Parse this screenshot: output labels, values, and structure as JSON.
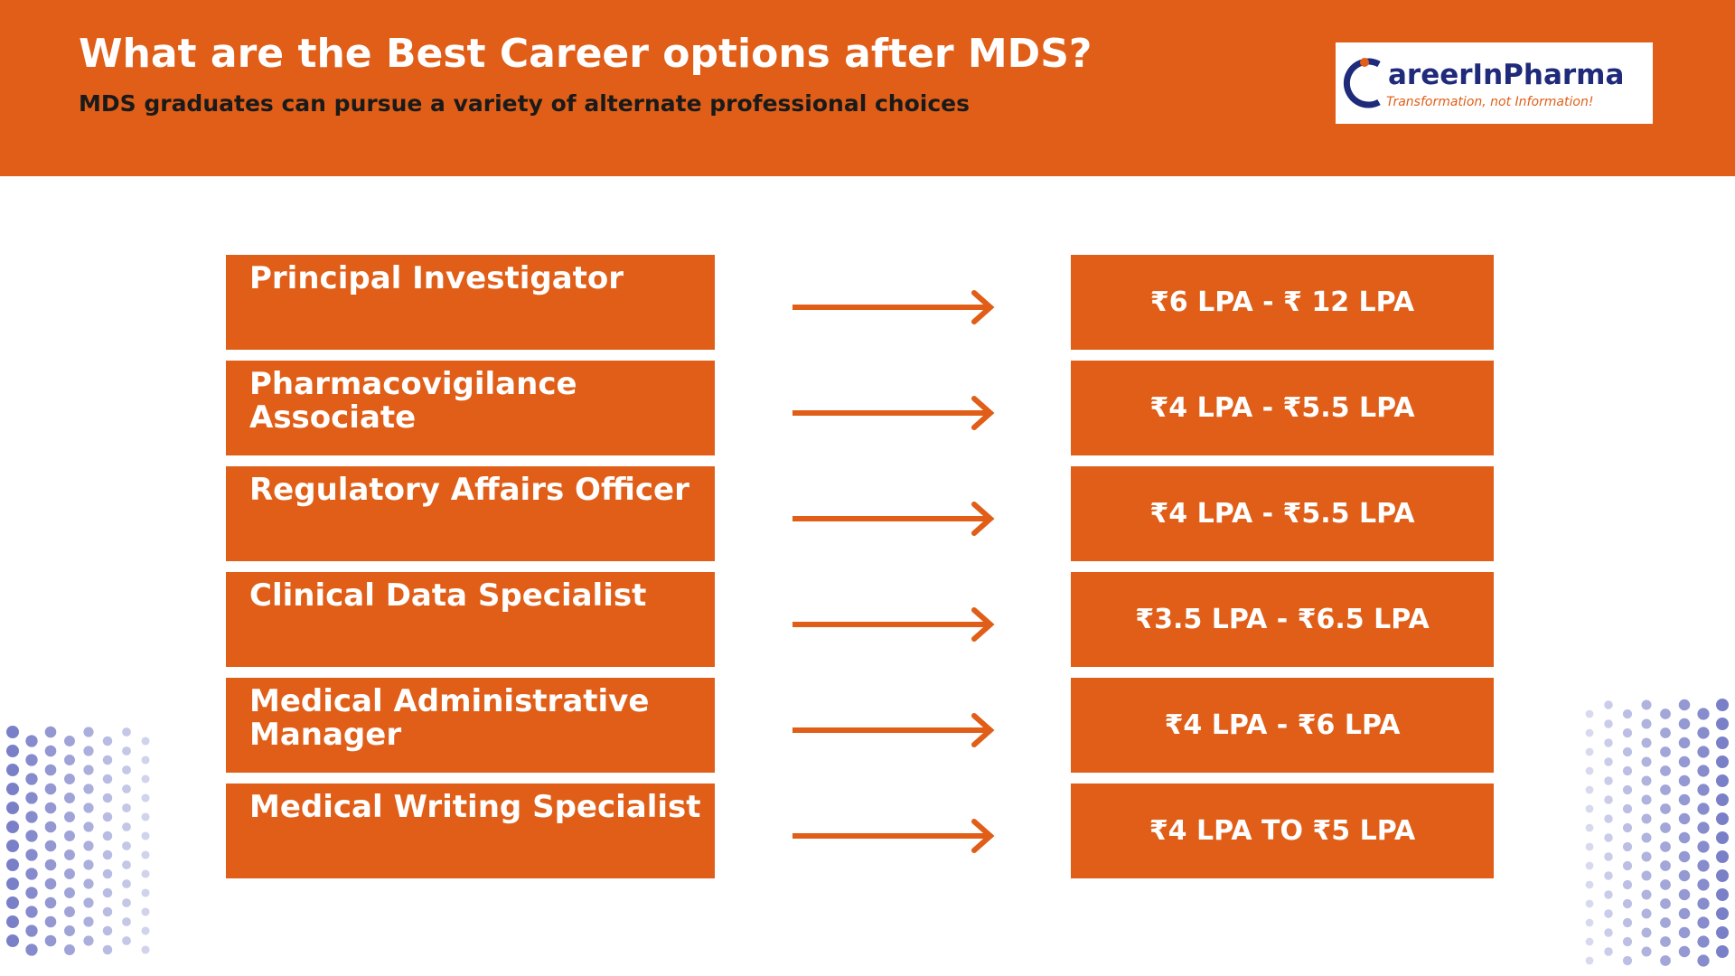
{
  "header": {
    "title": "What are the Best Career options after MDS?",
    "subtitle": "MDS graduates can pursue a variety of alternate professional choices"
  },
  "logo": {
    "brand": "areerInPharma",
    "tagline": "Transformation, not Information!"
  },
  "rows": [
    {
      "role": "Principal Investigator",
      "salary": "₹6 LPA - ₹ 12 LPA"
    },
    {
      "role": "Pharmacovigilance Associate",
      "salary": "₹4 LPA - ₹5.5 LPA"
    },
    {
      "role": "Regulatory Affairs Officer",
      "salary": "₹4 LPA - ₹5.5 LPA"
    },
    {
      "role": "Clinical Data Specialist",
      "salary": "₹3.5 LPA - ₹6.5 LPA"
    },
    {
      "role": "Medical Administrative Manager",
      "salary": "₹4 LPA - ₹6 LPA"
    },
    {
      "role": "Medical Writing Specialist",
      "salary": "₹4 LPA TO ₹5 LPA"
    }
  ]
}
